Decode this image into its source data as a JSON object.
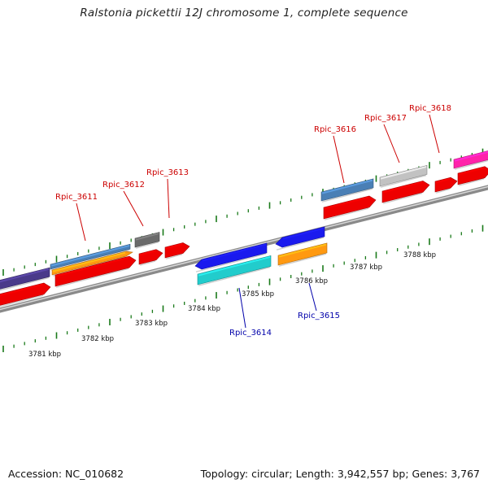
{
  "title": "Ralstonia pickettii 12J chromosome 1, complete sequence",
  "footer": {
    "accession": "Accession: NC_010682",
    "topology": "Topology: circular; Length: 3,942,557 bp; Genes: 3,767"
  },
  "axis": {
    "unit": "kbp",
    "tick_labels": [
      "3781 kbp",
      "3782 kbp",
      "3783 kbp",
      "3784 kbp",
      "3785 kbp",
      "3786 kbp",
      "3787 kbp",
      "3788 kbp"
    ]
  },
  "genes": [
    {
      "label": "Rpic_3611",
      "color": "#cc0000"
    },
    {
      "label": "Rpic_3612",
      "color": "#cc0000"
    },
    {
      "label": "Rpic_3613",
      "color": "#cc0000"
    },
    {
      "label": "Rpic_3614",
      "color": "#0000aa"
    },
    {
      "label": "Rpic_3615",
      "color": "#0000aa"
    },
    {
      "label": "Rpic_3616",
      "color": "#cc0000"
    },
    {
      "label": "Rpic_3617",
      "color": "#cc0000"
    },
    {
      "label": "Rpic_3618",
      "color": "#cc0000"
    }
  ],
  "colors": {
    "backbone": "#8a8a8a",
    "tick": "#1a7a1a",
    "red": "#ee0000",
    "blue": "#1a1aee",
    "cyan": "#22cccc",
    "orange": "#ff9911",
    "steelblue": "#4a7fb5",
    "gray": "#6a6a6a",
    "silver": "#c2c2c2",
    "magenta": "#ff22aa",
    "purple": "#4a3a8a"
  }
}
